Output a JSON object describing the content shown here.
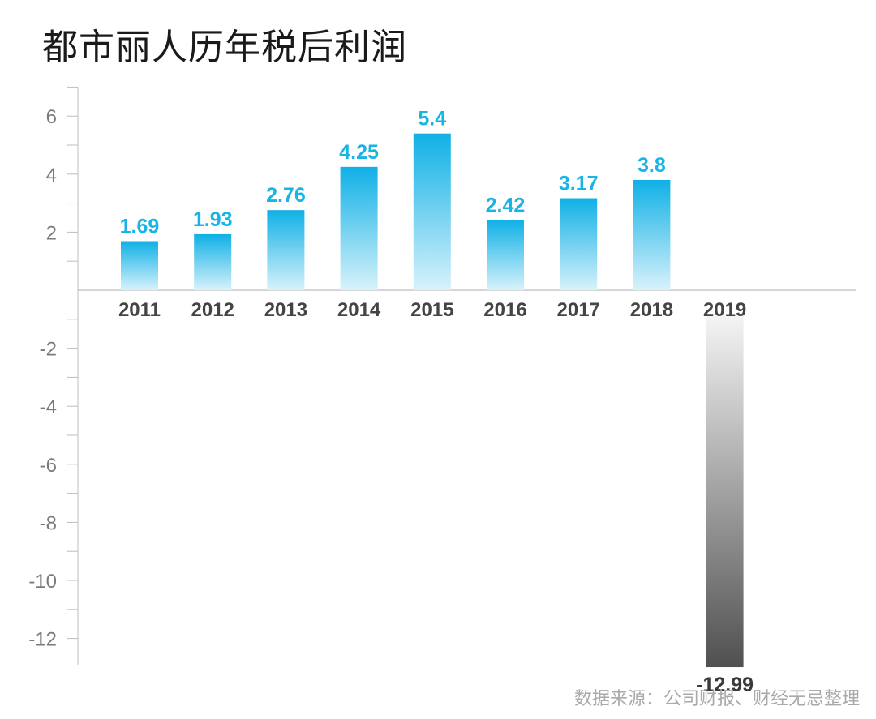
{
  "title": "都市丽人历年税后利润",
  "source": "数据来源：公司财报、财经无忌整理",
  "colors": {
    "positive": "#18b4e6",
    "negative": "#5a5a5a",
    "label_positive": "#18b4e6",
    "label_negative": "#3a3a3a",
    "axis": "#bdbdbd",
    "tick_text": "#7a7a7a",
    "category_text": "#444444"
  },
  "chart_data": {
    "type": "bar",
    "title": "都市丽人历年税后利润",
    "xlabel": "",
    "ylabel": "",
    "categories": [
      "2011",
      "2012",
      "2013",
      "2014",
      "2015",
      "2016",
      "2017",
      "2018",
      "2019"
    ],
    "values": [
      1.69,
      1.93,
      2.76,
      4.25,
      5.4,
      2.42,
      3.17,
      3.8,
      -12.99
    ],
    "value_labels": [
      "1.69",
      "1.93",
      "2.76",
      "4.25",
      "5.4",
      "2.42",
      "3.17",
      "3.8",
      "-12.99"
    ],
    "y_ticks": [
      "6",
      "4",
      "2",
      "-2",
      "-4",
      "-6",
      "-8",
      "-10",
      "-12"
    ],
    "ylim": [
      -13,
      7
    ],
    "grid": false,
    "legend": "none"
  }
}
